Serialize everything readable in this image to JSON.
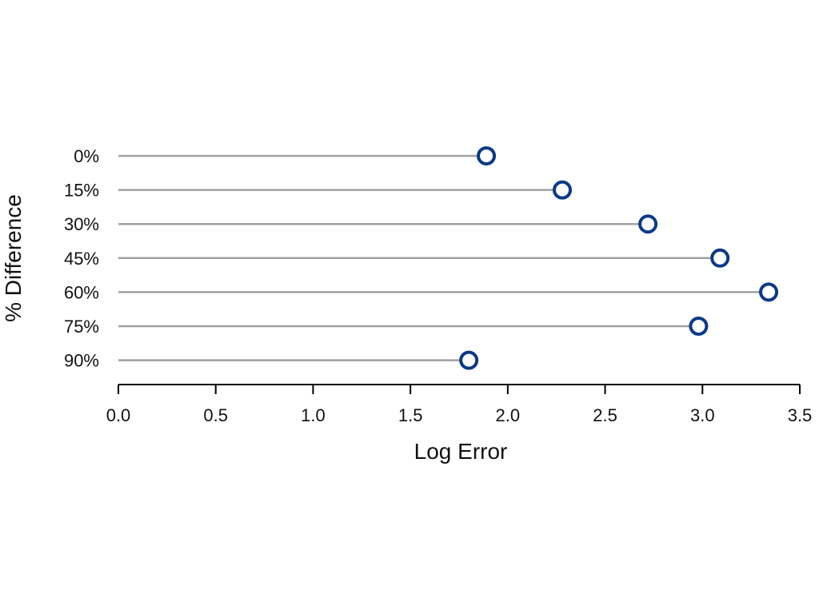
{
  "chart_data": {
    "type": "lollipop",
    "orientation": "horizontal",
    "xlabel": "Log Error",
    "ylabel": "% Difference",
    "xlim": [
      0,
      3.5
    ],
    "xticks": [
      "0.0",
      "0.5",
      "1.0",
      "1.5",
      "2.0",
      "2.5",
      "3.0",
      "3.5"
    ],
    "categories": [
      "0%",
      "15%",
      "30%",
      "45%",
      "60%",
      "75%",
      "90%"
    ],
    "values": [
      1.89,
      2.28,
      2.72,
      3.09,
      3.34,
      2.98,
      1.8
    ],
    "grid": false,
    "colors": {
      "stem": "#a0a0a0",
      "marker": "#0b3a86",
      "axis": "#000000"
    }
  }
}
